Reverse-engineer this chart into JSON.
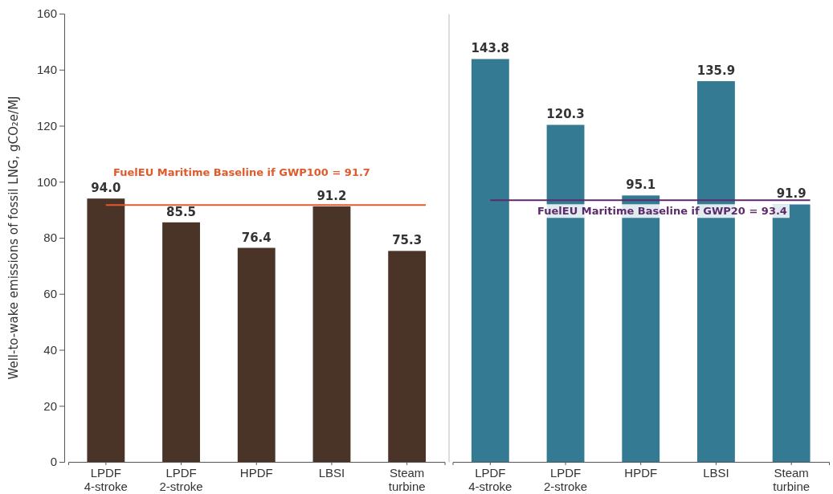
{
  "chart_data": [
    {
      "type": "bar",
      "ylabel": "Well-to-wake emissions of fossil LNG, gCO₂e/MJ",
      "categories": [
        "LPDF\n4-stroke",
        "LPDF\n2-stroke",
        "HPDF",
        "LBSI",
        "Steam\nturbine"
      ],
      "series": [
        {
          "color": "#4a3428",
          "values": [
            94.0,
            85.5,
            76.4,
            91.2,
            75.3
          ],
          "value_labels": [
            "94.0",
            "85.5",
            "76.4",
            "91.2",
            "75.3"
          ]
        }
      ],
      "ylim": [
        0,
        160
      ],
      "yticks": [
        0,
        20,
        40,
        60,
        80,
        100,
        120,
        140,
        160
      ],
      "ref_lines": [
        {
          "axis": "y",
          "value": 91.7,
          "label": "FuelEU Maritime Baseline if GWP100 = 91.7",
          "color": "#e05a2b"
        }
      ]
    },
    {
      "type": "bar",
      "categories": [
        "LPDF\n4-stroke",
        "LPDF\n2-stroke",
        "HPDF",
        "LBSI",
        "Steam\nturbine"
      ],
      "series": [
        {
          "color": "#347a93",
          "values": [
            143.8,
            120.3,
            95.1,
            135.9,
            91.9
          ],
          "value_labels": [
            "143.8",
            "120.3",
            "95.1",
            "135.9",
            "91.9"
          ]
        }
      ],
      "ylim": [
        0,
        160
      ],
      "yticks": [
        0,
        20,
        40,
        60,
        80,
        100,
        120,
        140,
        160
      ],
      "tick_labels": "x",
      "ref_lines": [
        {
          "axis": "y",
          "value": 93.4,
          "label": "FuelEU Maritime Baseline if GWP20 = 93.4",
          "color": "#5c2a6b"
        }
      ]
    }
  ]
}
